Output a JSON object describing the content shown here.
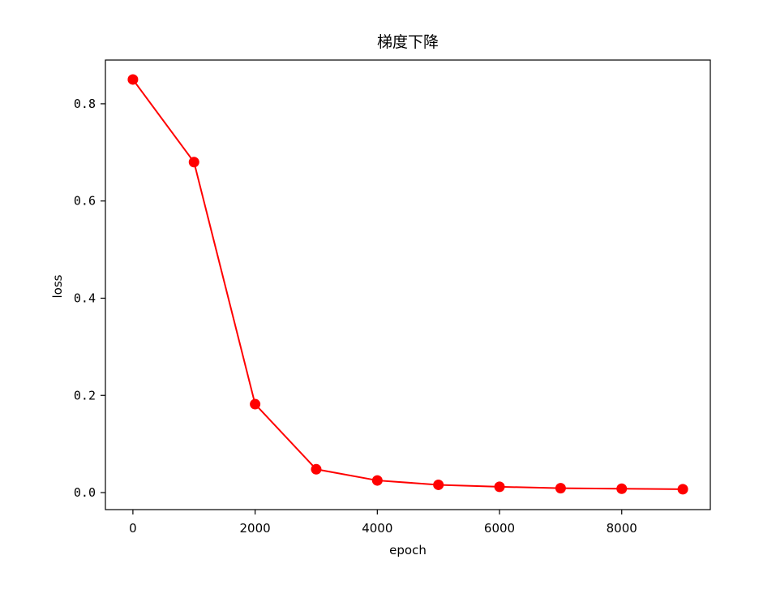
{
  "chart_data": {
    "type": "line",
    "title": "梯度下降",
    "xlabel": "epoch",
    "ylabel": "loss",
    "xlim": [
      -450,
      9450
    ],
    "ylim": [
      -0.035,
      0.89
    ],
    "xticks": [
      0,
      2000,
      4000,
      6000,
      8000
    ],
    "xtick_labels": [
      "0",
      "2000",
      "4000",
      "6000",
      "8000"
    ],
    "yticks": [
      0.0,
      0.2,
      0.4,
      0.6,
      0.8
    ],
    "ytick_labels": [
      "0.0",
      "0.2",
      "0.4",
      "0.6",
      "0.8"
    ],
    "grid": false,
    "series": [
      {
        "color": "#ff0000",
        "marker": "circle",
        "x": [
          0,
          1000,
          2000,
          3000,
          4000,
          5000,
          6000,
          7000,
          8000,
          9000
        ],
        "y": [
          0.85,
          0.68,
          0.182,
          0.048,
          0.025,
          0.016,
          0.012,
          0.009,
          0.008,
          0.007
        ]
      }
    ]
  }
}
